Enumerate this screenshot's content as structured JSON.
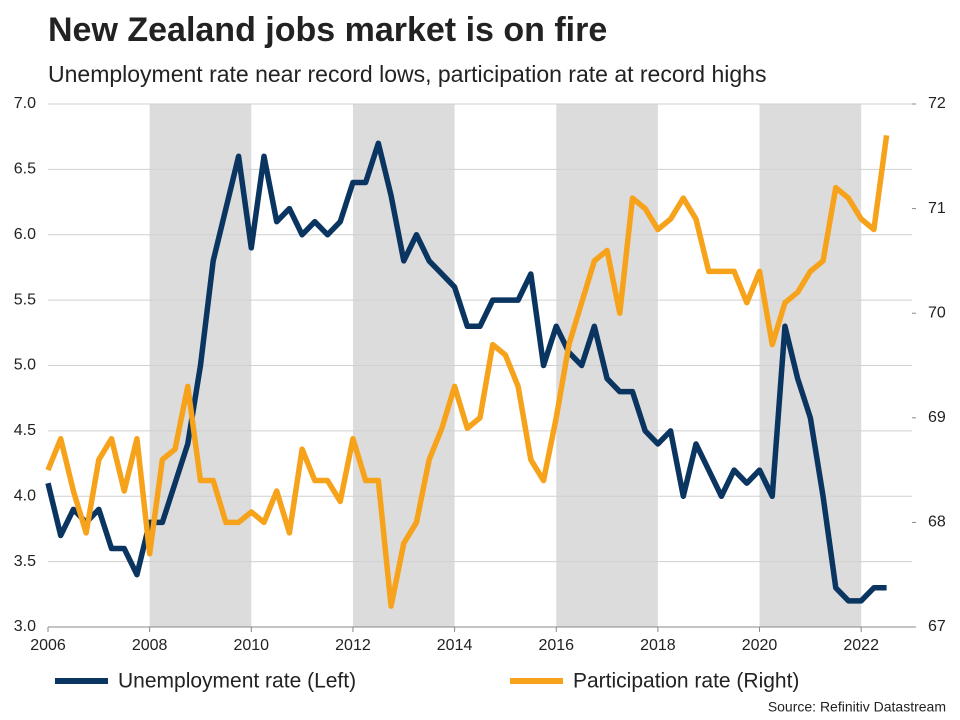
{
  "chart_data": {
    "type": "line",
    "title": "New Zealand jobs market is on fire",
    "subtitle": "Unemployment rate near record lows, participation rate at record highs",
    "source": "Source: Refinitiv Datastream",
    "x": [
      2006,
      2006.25,
      2006.5,
      2006.75,
      2007,
      2007.25,
      2007.5,
      2007.75,
      2008,
      2008.25,
      2008.5,
      2008.75,
      2009,
      2009.25,
      2009.5,
      2009.75,
      2010,
      2010.25,
      2010.5,
      2010.75,
      2011,
      2011.25,
      2011.5,
      2011.75,
      2012,
      2012.25,
      2012.5,
      2012.75,
      2013,
      2013.25,
      2013.5,
      2013.75,
      2014,
      2014.25,
      2014.5,
      2014.75,
      2015,
      2015.25,
      2015.5,
      2015.75,
      2016,
      2016.25,
      2016.5,
      2016.75,
      2017,
      2017.25,
      2017.5,
      2017.75,
      2018,
      2018.25,
      2018.5,
      2018.75,
      2019,
      2019.25,
      2019.5,
      2019.75,
      2020,
      2020.25,
      2020.5,
      2020.75,
      2021,
      2021.25,
      2021.5,
      2021.75,
      2022,
      2022.25,
      2022.5
    ],
    "series": [
      {
        "name": "Unemployment rate (Left)",
        "color": "#0b3561",
        "axis": "y",
        "values": [
          4.1,
          3.7,
          3.9,
          3.8,
          3.9,
          3.6,
          3.6,
          3.4,
          3.8,
          3.8,
          4.1,
          4.4,
          5.0,
          5.8,
          6.2,
          6.6,
          5.9,
          6.6,
          6.1,
          6.2,
          6.0,
          6.1,
          6.0,
          6.1,
          6.4,
          6.4,
          6.7,
          6.3,
          5.8,
          6.0,
          5.8,
          5.7,
          5.6,
          5.3,
          5.3,
          5.5,
          5.5,
          5.5,
          5.7,
          5.0,
          5.3,
          5.1,
          5.0,
          5.3,
          4.9,
          4.8,
          4.8,
          4.5,
          4.4,
          4.5,
          4.0,
          4.4,
          4.2,
          4.0,
          4.2,
          4.1,
          4.2,
          4.0,
          5.3,
          4.9,
          4.6,
          4.0,
          3.3,
          3.2,
          3.2,
          3.3,
          3.3
        ]
      },
      {
        "name": "Participation rate (Right)",
        "color": "#f7a21b",
        "axis": "y2",
        "values": [
          68.5,
          68.8,
          68.3,
          67.9,
          68.6,
          68.8,
          68.3,
          68.8,
          67.7,
          68.6,
          68.7,
          69.3,
          68.4,
          68.4,
          68.0,
          68.0,
          68.1,
          68.0,
          68.3,
          67.9,
          68.7,
          68.4,
          68.4,
          68.2,
          68.8,
          68.4,
          68.4,
          67.2,
          67.8,
          68.0,
          68.6,
          68.9,
          69.3,
          68.9,
          69.0,
          69.7,
          69.6,
          69.3,
          68.6,
          68.4,
          69.0,
          69.7,
          70.1,
          70.5,
          70.6,
          70.0,
          71.1,
          71.0,
          70.8,
          70.9,
          71.1,
          70.9,
          70.4,
          70.4,
          70.4,
          70.1,
          70.4,
          69.7,
          70.1,
          70.2,
          70.4,
          70.5,
          71.2,
          71.1,
          70.9,
          70.8,
          71.7
        ]
      }
    ],
    "xlim": [
      2006,
      2023
    ],
    "xticks": [
      2006,
      2008,
      2010,
      2012,
      2014,
      2016,
      2018,
      2020,
      2022
    ],
    "ylim": [
      3,
      7
    ],
    "yticks": [
      {
        "value": 3,
        "label": "3.0"
      },
      3.5,
      {
        "value": 4,
        "label": "4.0"
      },
      4.5,
      {
        "value": 5,
        "label": "5.0"
      },
      5.5,
      {
        "value": 6,
        "label": "6.0"
      },
      6.5,
      {
        "value": 7,
        "label": "7.0"
      }
    ],
    "y2lim": [
      67,
      72
    ],
    "y2ticks": [
      67,
      68,
      69,
      70,
      71,
      72
    ],
    "grid": true
  }
}
